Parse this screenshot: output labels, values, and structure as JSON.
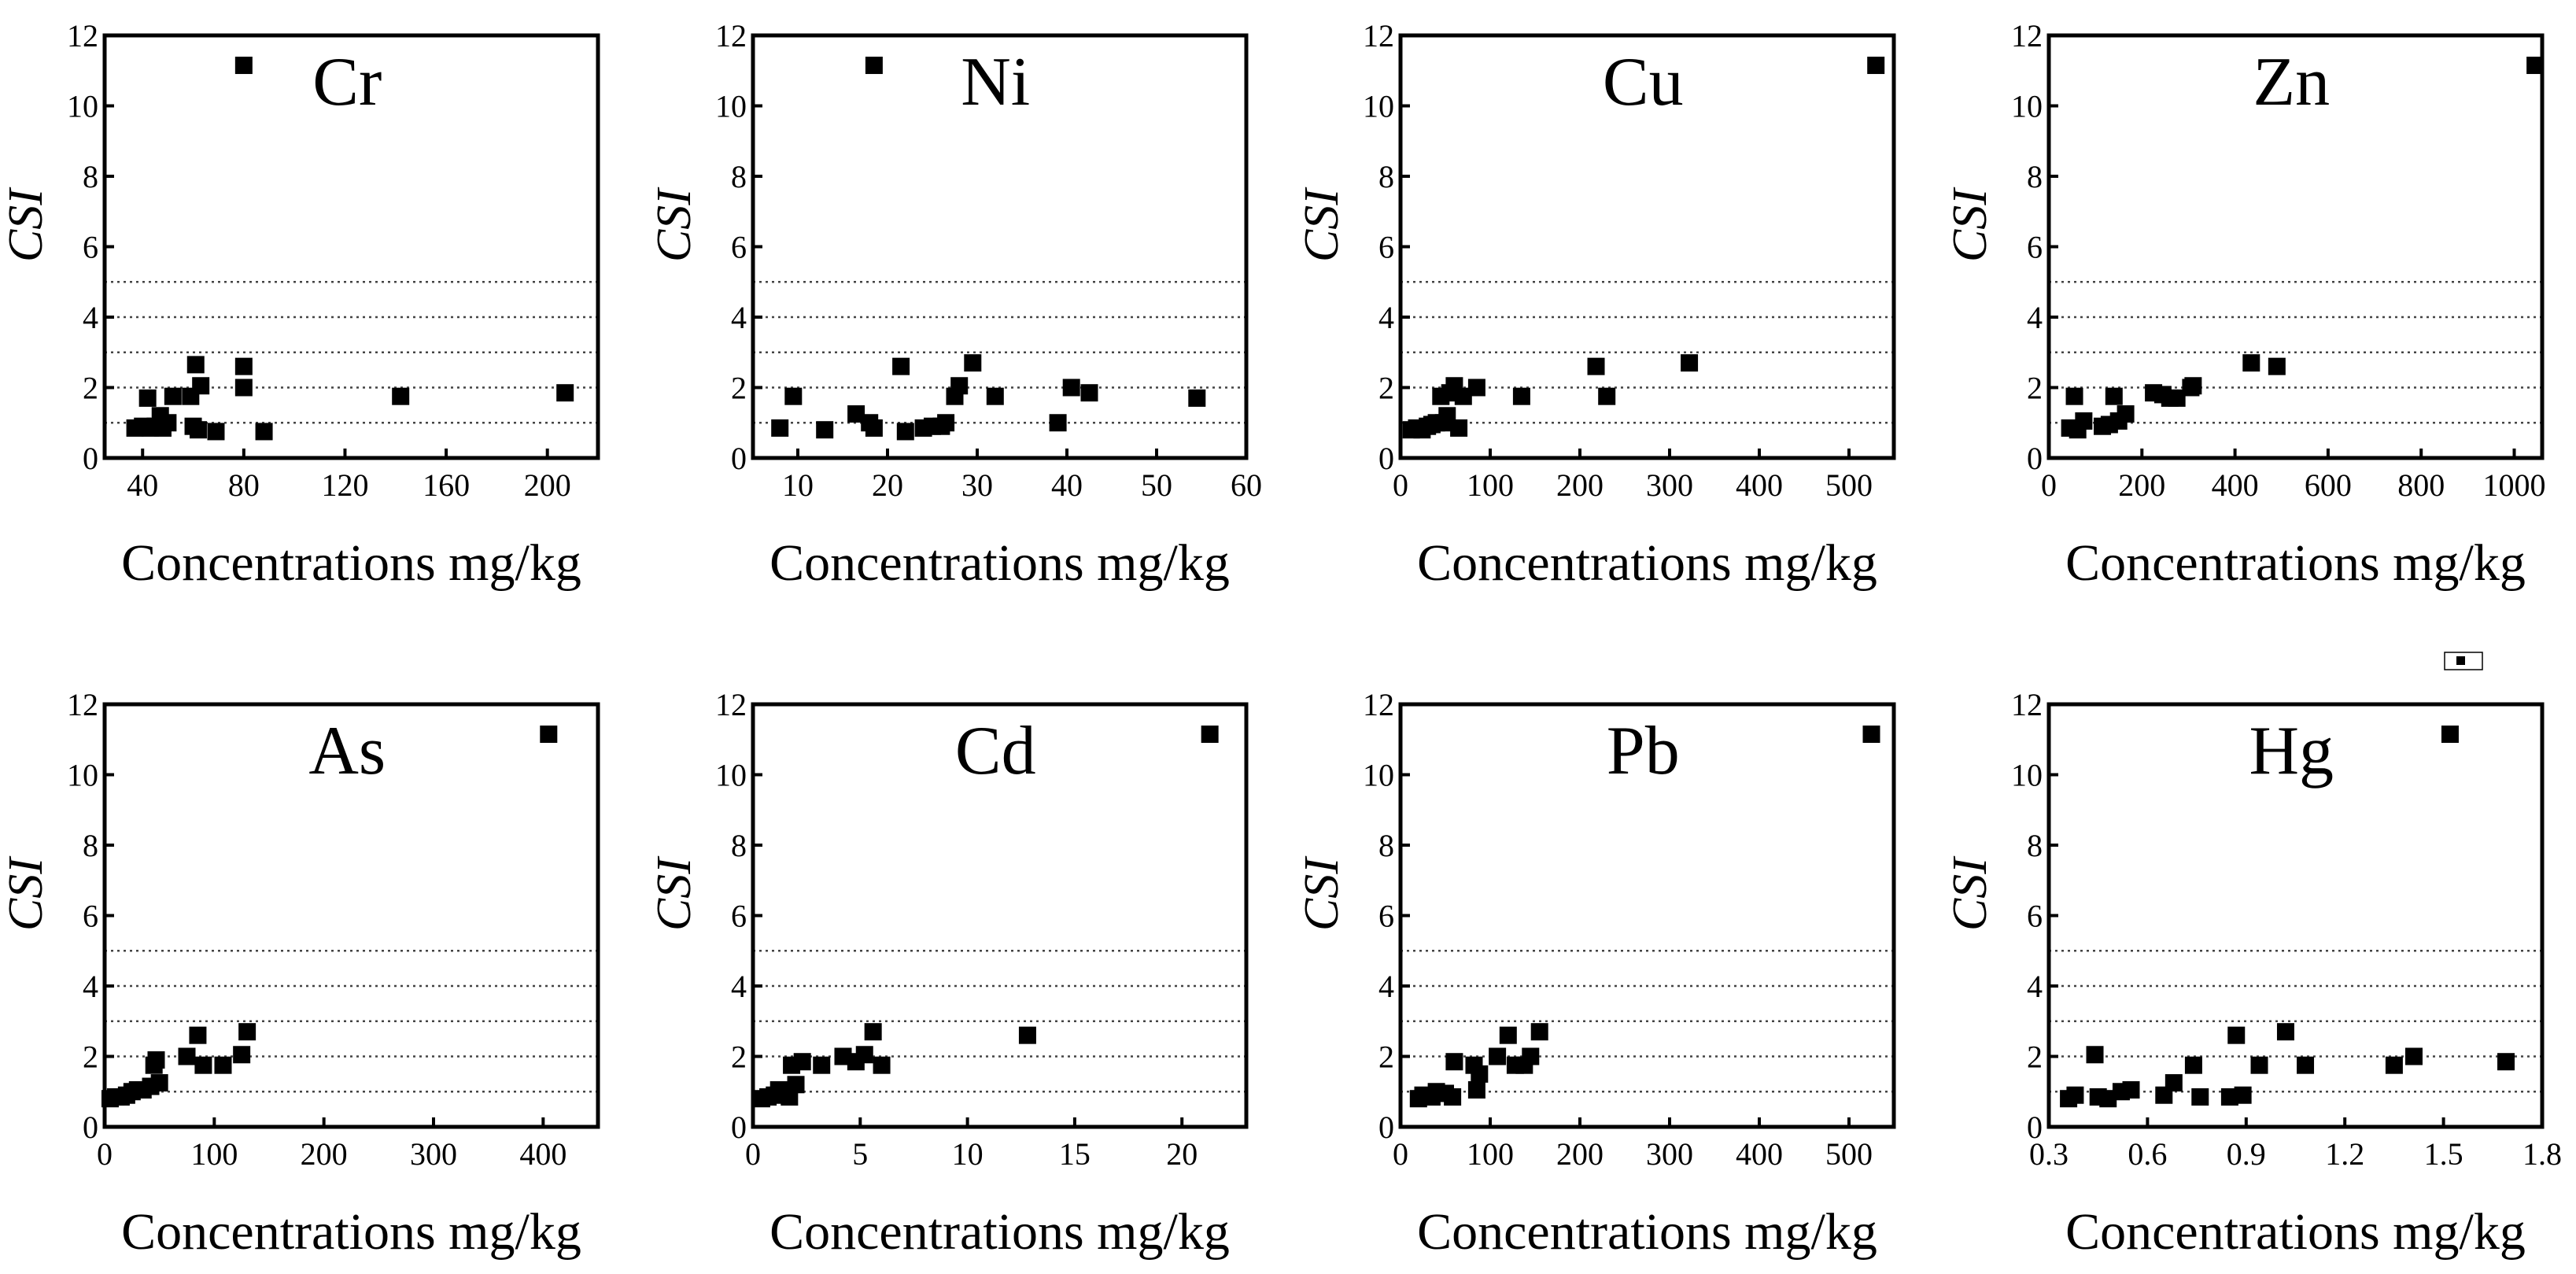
{
  "chart_data": [
    {
      "type": "scatter",
      "title": "Cr",
      "xlabel": "Concentrations mg/kg",
      "ylabel": "CSI",
      "xlim": [
        25,
        220
      ],
      "ylim": [
        0,
        12
      ],
      "xticks": [
        40,
        80,
        120,
        160,
        200
      ],
      "xtick_labels": [
        "40",
        "80",
        "120",
        "160",
        "200"
      ],
      "yticks": [
        0,
        2,
        4,
        6,
        8,
        10,
        12
      ],
      "ytick_labels": [
        "0",
        "2",
        "4",
        "6",
        "8",
        "10",
        "12"
      ],
      "reference_lines": [
        1,
        2,
        3,
        4,
        5
      ],
      "marker_color": "#000000",
      "points": [
        [
          80,
          11.15
        ],
        [
          37,
          0.85
        ],
        [
          40,
          0.9
        ],
        [
          42,
          1.7
        ],
        [
          43,
          0.85
        ],
        [
          45,
          0.9
        ],
        [
          47,
          1.2
        ],
        [
          48,
          0.85
        ],
        [
          50,
          1.0
        ],
        [
          52,
          1.75
        ],
        [
          59,
          1.75
        ],
        [
          60,
          0.9
        ],
        [
          61,
          2.65
        ],
        [
          62,
          0.8
        ],
        [
          63,
          2.05
        ],
        [
          69,
          0.75
        ],
        [
          80,
          2.6
        ],
        [
          80,
          2.0
        ],
        [
          88,
          0.75
        ],
        [
          142,
          1.75
        ],
        [
          207,
          1.85
        ]
      ]
    },
    {
      "type": "scatter",
      "title": "Ni",
      "xlabel": "Concentrations mg/kg",
      "ylabel": "CSI",
      "xlim": [
        5,
        60
      ],
      "ylim": [
        0,
        12
      ],
      "xticks": [
        10,
        20,
        30,
        40,
        50,
        60
      ],
      "xtick_labels": [
        "10",
        "20",
        "30",
        "40",
        "50",
        "60"
      ],
      "yticks": [
        0,
        2,
        4,
        6,
        8,
        10,
        12
      ],
      "ytick_labels": [
        "0",
        "2",
        "4",
        "6",
        "8",
        "10",
        "12"
      ],
      "reference_lines": [
        1,
        2,
        3,
        4,
        5
      ],
      "marker_color": "#000000",
      "points": [
        [
          18.5,
          11.15
        ],
        [
          8,
          0.85
        ],
        [
          9.5,
          1.75
        ],
        [
          13,
          0.8
        ],
        [
          16.5,
          1.25
        ],
        [
          18,
          1.0
        ],
        [
          18.5,
          0.85
        ],
        [
          21.5,
          2.6
        ],
        [
          22,
          0.75
        ],
        [
          24,
          0.85
        ],
        [
          25,
          0.9
        ],
        [
          26,
          0.9
        ],
        [
          26.5,
          1.0
        ],
        [
          27.5,
          1.75
        ],
        [
          28,
          2.05
        ],
        [
          29.5,
          2.7
        ],
        [
          32,
          1.75
        ],
        [
          39,
          1.0
        ],
        [
          40.5,
          2.0
        ],
        [
          42.5,
          1.85
        ],
        [
          54.5,
          1.7
        ]
      ]
    },
    {
      "type": "scatter",
      "title": "Cu",
      "xlabel": "Concentrations mg/kg",
      "ylabel": "CSI",
      "xlim": [
        0,
        550
      ],
      "ylim": [
        0,
        12
      ],
      "xticks": [
        0,
        100,
        200,
        300,
        400,
        500
      ],
      "xtick_labels": [
        "0",
        "100",
        "200",
        "300",
        "400",
        "500"
      ],
      "yticks": [
        0,
        2,
        4,
        6,
        8,
        10,
        12
      ],
      "ytick_labels": [
        "0",
        "2",
        "4",
        "6",
        "8",
        "10",
        "12"
      ],
      "reference_lines": [
        1,
        2,
        3,
        4,
        5
      ],
      "marker_color": "#000000",
      "points": [
        [
          530,
          11.15
        ],
        [
          12,
          0.8
        ],
        [
          18,
          0.85
        ],
        [
          24,
          0.8
        ],
        [
          30,
          0.9
        ],
        [
          35,
          0.95
        ],
        [
          40,
          1.0
        ],
        [
          45,
          1.75
        ],
        [
          48,
          1.0
        ],
        [
          52,
          1.2
        ],
        [
          55,
          1.85
        ],
        [
          60,
          2.05
        ],
        [
          65,
          0.85
        ],
        [
          70,
          1.75
        ],
        [
          85,
          2.0
        ],
        [
          135,
          1.75
        ],
        [
          218,
          2.6
        ],
        [
          230,
          1.75
        ],
        [
          322,
          2.7
        ]
      ]
    },
    {
      "type": "scatter",
      "title": "Zn",
      "xlabel": "Concentrations mg/kg",
      "ylabel": "CSI",
      "xlim": [
        0,
        1060
      ],
      "ylim": [
        0,
        12
      ],
      "xticks": [
        0,
        200,
        400,
        600,
        800,
        1000
      ],
      "xtick_labels": [
        "0",
        "200",
        "400",
        "600",
        "800",
        "1000"
      ],
      "yticks": [
        0,
        2,
        4,
        6,
        8,
        10,
        12
      ],
      "ytick_labels": [
        "0",
        "2",
        "4",
        "6",
        "8",
        "10",
        "12"
      ],
      "reference_lines": [
        1,
        2,
        3,
        4,
        5
      ],
      "marker_color": "#000000",
      "points": [
        [
          1045,
          11.15
        ],
        [
          45,
          0.85
        ],
        [
          55,
          1.75
        ],
        [
          62,
          0.8
        ],
        [
          75,
          1.05
        ],
        [
          115,
          0.9
        ],
        [
          130,
          0.95
        ],
        [
          140,
          1.75
        ],
        [
          150,
          1.05
        ],
        [
          165,
          1.25
        ],
        [
          225,
          1.85
        ],
        [
          245,
          1.8
        ],
        [
          260,
          1.7
        ],
        [
          275,
          1.7
        ],
        [
          305,
          2.0
        ],
        [
          310,
          2.05
        ],
        [
          435,
          2.7
        ],
        [
          490,
          2.6
        ]
      ]
    },
    {
      "type": "scatter",
      "title": "As",
      "xlabel": "Concentrations mg/kg",
      "ylabel": "CSI",
      "xlim": [
        0,
        450
      ],
      "ylim": [
        0,
        12
      ],
      "xticks": [
        0,
        100,
        200,
        300,
        400
      ],
      "xtick_labels": [
        "0",
        "100",
        "200",
        "300",
        "400"
      ],
      "yticks": [
        0,
        2,
        4,
        6,
        8,
        10,
        12
      ],
      "ytick_labels": [
        "0",
        "2",
        "4",
        "6",
        "8",
        "10",
        "12"
      ],
      "reference_lines": [
        1,
        2,
        3,
        4,
        5
      ],
      "marker_color": "#000000",
      "points": [
        [
          405,
          11.15
        ],
        [
          5,
          0.8
        ],
        [
          10,
          0.85
        ],
        [
          15,
          0.85
        ],
        [
          20,
          0.9
        ],
        [
          25,
          1.0
        ],
        [
          30,
          1.05
        ],
        [
          35,
          1.05
        ],
        [
          42,
          1.15
        ],
        [
          45,
          1.75
        ],
        [
          47,
          1.9
        ],
        [
          50,
          1.25
        ],
        [
          75,
          2.0
        ],
        [
          85,
          2.6
        ],
        [
          90,
          1.75
        ],
        [
          108,
          1.75
        ],
        [
          125,
          2.05
        ],
        [
          130,
          2.7
        ]
      ]
    },
    {
      "type": "scatter",
      "title": "Cd",
      "xlabel": "Concentrations mg/kg",
      "ylabel": "CSI",
      "xlim": [
        0,
        23
      ],
      "ylim": [
        0,
        12
      ],
      "xticks": [
        0,
        5,
        10,
        15,
        20
      ],
      "xtick_labels": [
        "0",
        "5",
        "10",
        "15",
        "20"
      ],
      "yticks": [
        0,
        2,
        4,
        6,
        8,
        10,
        12
      ],
      "ytick_labels": [
        "0",
        "2",
        "4",
        "6",
        "8",
        "10",
        "12"
      ],
      "reference_lines": [
        1,
        2,
        3,
        4,
        5
      ],
      "marker_color": "#000000",
      "points": [
        [
          21.3,
          11.15
        ],
        [
          0.4,
          0.8
        ],
        [
          0.7,
          0.85
        ],
        [
          1.0,
          0.9
        ],
        [
          1.2,
          1.05
        ],
        [
          1.5,
          1.0
        ],
        [
          1.7,
          0.85
        ],
        [
          1.8,
          1.75
        ],
        [
          2.0,
          1.2
        ],
        [
          2.3,
          1.85
        ],
        [
          3.2,
          1.75
        ],
        [
          4.2,
          2.0
        ],
        [
          4.8,
          1.85
        ],
        [
          5.2,
          2.05
        ],
        [
          5.6,
          2.7
        ],
        [
          6.0,
          1.75
        ],
        [
          12.8,
          2.6
        ]
      ]
    },
    {
      "type": "scatter",
      "title": "Pb",
      "xlabel": "Concentrations mg/kg",
      "ylabel": "CSI",
      "xlim": [
        0,
        550
      ],
      "ylim": [
        0,
        12
      ],
      "xticks": [
        0,
        100,
        200,
        300,
        400,
        500
      ],
      "xtick_labels": [
        "0",
        "100",
        "200",
        "300",
        "400",
        "500"
      ],
      "yticks": [
        0,
        2,
        4,
        6,
        8,
        10,
        12
      ],
      "ytick_labels": [
        "0",
        "2",
        "4",
        "6",
        "8",
        "10",
        "12"
      ],
      "reference_lines": [
        1,
        2,
        3,
        4,
        5
      ],
      "marker_color": "#000000",
      "points": [
        [
          525,
          11.15
        ],
        [
          20,
          0.8
        ],
        [
          25,
          0.9
        ],
        [
          35,
          0.85
        ],
        [
          40,
          1.0
        ],
        [
          50,
          0.95
        ],
        [
          58,
          0.85
        ],
        [
          60,
          1.85
        ],
        [
          82,
          1.75
        ],
        [
          85,
          1.05
        ],
        [
          88,
          1.5
        ],
        [
          108,
          2.0
        ],
        [
          120,
          2.6
        ],
        [
          128,
          1.75
        ],
        [
          138,
          1.75
        ],
        [
          145,
          2.0
        ],
        [
          155,
          2.7
        ]
      ]
    },
    {
      "type": "scatter",
      "title": "Hg",
      "xlabel": "Concentrations mg/kg",
      "ylabel": "CSI",
      "xlim": [
        0.3,
        1.8
      ],
      "ylim": [
        0,
        12
      ],
      "xticks": [
        0.3,
        0.6,
        0.9,
        1.2,
        1.5,
        1.8
      ],
      "xtick_labels": [
        "0.3",
        "0.6",
        "0.9",
        "1.2",
        "1.5",
        "1.8"
      ],
      "yticks": [
        0,
        2,
        4,
        6,
        8,
        10,
        12
      ],
      "ytick_labels": [
        "0",
        "2",
        "4",
        "6",
        "8",
        "10",
        "12"
      ],
      "reference_lines": [
        1,
        2,
        3,
        4,
        5
      ],
      "marker_color": "#000000",
      "points": [
        [
          1.52,
          11.15
        ],
        [
          0.36,
          0.8
        ],
        [
          0.38,
          0.9
        ],
        [
          0.44,
          2.05
        ],
        [
          0.45,
          0.85
        ],
        [
          0.48,
          0.8
        ],
        [
          0.52,
          1.0
        ],
        [
          0.55,
          1.05
        ],
        [
          0.65,
          0.9
        ],
        [
          0.68,
          1.25
        ],
        [
          0.74,
          1.75
        ],
        [
          0.76,
          0.85
        ],
        [
          0.85,
          0.85
        ],
        [
          0.87,
          2.6
        ],
        [
          0.89,
          0.9
        ],
        [
          0.94,
          1.75
        ],
        [
          1.02,
          2.7
        ],
        [
          1.08,
          1.75
        ],
        [
          1.35,
          1.75
        ],
        [
          1.41,
          2.0
        ],
        [
          1.69,
          1.85
        ]
      ]
    }
  ]
}
